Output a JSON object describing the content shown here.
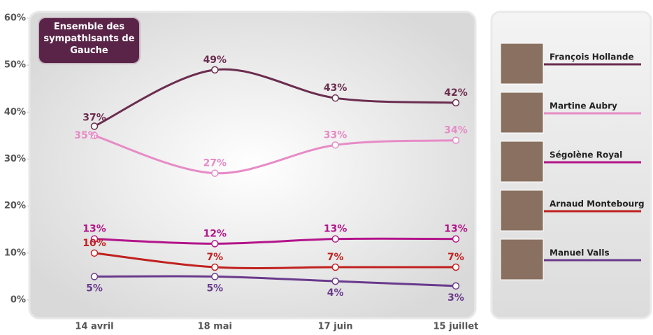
{
  "chart_data": {
    "type": "line",
    "title": "Ensemble des sympathisants de Gauche",
    "categories": [
      "14 avril",
      "18 mai",
      "17 juin",
      "15 juillet"
    ],
    "ylim": [
      0,
      60
    ],
    "yticks": [
      {
        "value": 0,
        "label": "0%"
      },
      {
        "value": 10,
        "label": "10%"
      },
      {
        "value": 20,
        "label": "20%"
      },
      {
        "value": 30,
        "label": "30%"
      },
      {
        "value": 40,
        "label": "40%"
      },
      {
        "value": 50,
        "label": "50%"
      },
      {
        "value": 60,
        "label": "60%"
      }
    ],
    "series": [
      {
        "name": "François Hollande",
        "color": "#6b2d4f",
        "values": [
          37,
          49,
          43,
          42
        ],
        "value_labels": [
          "37%",
          "49%",
          "43%",
          "42%"
        ]
      },
      {
        "name": "Martine Aubry",
        "color": "#e68cc6",
        "values": [
          35,
          27,
          33,
          34
        ],
        "value_labels": [
          "35%",
          "27%",
          "33%",
          "34%"
        ]
      },
      {
        "name": "Ségolène Royal",
        "color": "#b3158a",
        "values": [
          13,
          12,
          13,
          13
        ],
        "value_labels": [
          "13%",
          "12%",
          "13%",
          "13%"
        ]
      },
      {
        "name": "Arnaud Montebourg",
        "color": "#c0211f",
        "values": [
          10,
          7,
          7,
          7
        ],
        "value_labels": [
          "10%",
          "7%",
          "7%",
          "7%"
        ]
      },
      {
        "name": "Manuel Valls",
        "color": "#6a3a8c",
        "values": [
          5,
          5,
          4,
          3
        ],
        "value_labels": [
          "5%",
          "5%",
          "4%",
          "3%"
        ]
      }
    ]
  }
}
